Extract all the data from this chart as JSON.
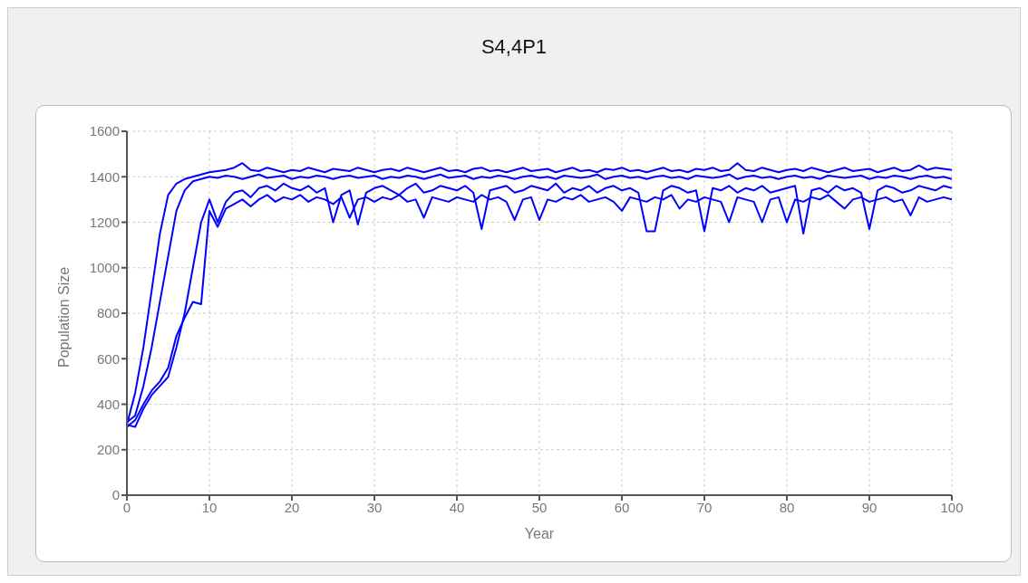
{
  "chart_data": {
    "type": "line",
    "title": "S4,4P1",
    "xlabel": "Year",
    "ylabel": "Population Size",
    "x": [
      0,
      1,
      2,
      3,
      4,
      5,
      6,
      7,
      8,
      9,
      10,
      11,
      12,
      13,
      14,
      15,
      16,
      17,
      18,
      19,
      20,
      21,
      22,
      23,
      24,
      25,
      26,
      27,
      28,
      29,
      30,
      31,
      32,
      33,
      34,
      35,
      36,
      37,
      38,
      39,
      40,
      41,
      42,
      43,
      44,
      45,
      46,
      47,
      48,
      49,
      50,
      51,
      52,
      53,
      54,
      55,
      56,
      57,
      58,
      59,
      60,
      61,
      62,
      63,
      64,
      65,
      66,
      67,
      68,
      69,
      70,
      71,
      72,
      73,
      74,
      75,
      76,
      77,
      78,
      79,
      80,
      81,
      82,
      83,
      84,
      85,
      86,
      87,
      88,
      89,
      90,
      91,
      92,
      93,
      94,
      95,
      96,
      97,
      98,
      99,
      100
    ],
    "series": [
      {
        "color": "#0000ff",
        "values": [
          310,
          450,
          650,
          900,
          1150,
          1320,
          1370,
          1390,
          1400,
          1410,
          1420,
          1425,
          1430,
          1440,
          1460,
          1430,
          1425,
          1440,
          1430,
          1420,
          1430,
          1425,
          1440,
          1430,
          1420,
          1435,
          1430,
          1425,
          1440,
          1430,
          1420,
          1430,
          1435,
          1425,
          1440,
          1430,
          1420,
          1430,
          1440,
          1425,
          1430,
          1420,
          1435,
          1440,
          1425,
          1430,
          1420,
          1430,
          1440,
          1425,
          1430,
          1435,
          1420,
          1430,
          1440,
          1425,
          1430,
          1420,
          1435,
          1430,
          1440,
          1425,
          1430,
          1420,
          1430,
          1440,
          1425,
          1430,
          1420,
          1435,
          1430,
          1440,
          1425,
          1430,
          1460,
          1430,
          1425,
          1440,
          1430,
          1420,
          1430,
          1435,
          1425,
          1440,
          1430,
          1420,
          1430,
          1440,
          1425,
          1430,
          1435,
          1420,
          1430,
          1440,
          1425,
          1430,
          1450,
          1430,
          1440,
          1435,
          1430
        ]
      },
      {
        "color": "#0000ff",
        "values": [
          320,
          350,
          480,
          650,
          850,
          1050,
          1250,
          1340,
          1380,
          1390,
          1400,
          1395,
          1405,
          1400,
          1390,
          1400,
          1410,
          1395,
          1400,
          1405,
          1390,
          1400,
          1395,
          1405,
          1400,
          1390,
          1400,
          1405,
          1395,
          1400,
          1405,
          1390,
          1400,
          1395,
          1405,
          1400,
          1390,
          1400,
          1410,
          1395,
          1400,
          1405,
          1390,
          1400,
          1395,
          1405,
          1400,
          1390,
          1400,
          1405,
          1395,
          1400,
          1390,
          1405,
          1400,
          1395,
          1400,
          1410,
          1390,
          1400,
          1405,
          1395,
          1400,
          1390,
          1400,
          1405,
          1395,
          1400,
          1390,
          1405,
          1400,
          1395,
          1400,
          1410,
          1390,
          1400,
          1405,
          1395,
          1400,
          1390,
          1400,
          1405,
          1395,
          1400,
          1390,
          1405,
          1400,
          1395,
          1400,
          1405,
          1390,
          1400,
          1395,
          1405,
          1400,
          1390,
          1400,
          1405,
          1395,
          1400,
          1390
        ]
      },
      {
        "color": "#0000ff",
        "values": [
          310,
          300,
          380,
          440,
          480,
          520,
          650,
          800,
          1000,
          1200,
          1300,
          1200,
          1290,
          1330,
          1340,
          1310,
          1350,
          1360,
          1340,
          1370,
          1350,
          1340,
          1360,
          1330,
          1350,
          1200,
          1320,
          1340,
          1190,
          1330,
          1350,
          1360,
          1340,
          1320,
          1350,
          1370,
          1330,
          1340,
          1360,
          1350,
          1340,
          1360,
          1330,
          1170,
          1340,
          1350,
          1360,
          1330,
          1340,
          1360,
          1350,
          1340,
          1370,
          1330,
          1350,
          1340,
          1360,
          1330,
          1350,
          1360,
          1340,
          1350,
          1330,
          1160,
          1160,
          1340,
          1360,
          1350,
          1330,
          1340,
          1160,
          1350,
          1340,
          1360,
          1330,
          1350,
          1340,
          1360,
          1330,
          1340,
          1350,
          1360,
          1150,
          1340,
          1350,
          1330,
          1360,
          1340,
          1350,
          1330,
          1170,
          1340,
          1360,
          1350,
          1330,
          1340,
          1360,
          1350,
          1340,
          1360,
          1350
        ]
      },
      {
        "color": "#0000ff",
        "values": [
          300,
          330,
          400,
          460,
          500,
          560,
          700,
          780,
          850,
          840,
          1250,
          1180,
          1260,
          1280,
          1300,
          1270,
          1300,
          1320,
          1290,
          1310,
          1300,
          1320,
          1290,
          1310,
          1300,
          1280,
          1310,
          1220,
          1300,
          1310,
          1290,
          1310,
          1300,
          1320,
          1290,
          1300,
          1220,
          1310,
          1300,
          1290,
          1310,
          1300,
          1290,
          1320,
          1300,
          1310,
          1290,
          1210,
          1300,
          1310,
          1210,
          1300,
          1290,
          1310,
          1300,
          1320,
          1290,
          1300,
          1310,
          1290,
          1250,
          1310,
          1300,
          1290,
          1310,
          1300,
          1320,
          1260,
          1300,
          1290,
          1310,
          1300,
          1290,
          1200,
          1310,
          1300,
          1290,
          1200,
          1300,
          1310,
          1200,
          1300,
          1290,
          1310,
          1300,
          1320,
          1290,
          1260,
          1300,
          1310,
          1290,
          1300,
          1310,
          1290,
          1300,
          1230,
          1310,
          1290,
          1300,
          1310,
          1300
        ]
      }
    ],
    "xlim": [
      0,
      100
    ],
    "xticks": [
      0,
      10,
      20,
      30,
      40,
      50,
      60,
      70,
      80,
      90,
      100
    ],
    "ylim": [
      0,
      1600
    ],
    "yticks": [
      0,
      200,
      400,
      600,
      800,
      1000,
      1200,
      1400,
      1600
    ],
    "grid": true
  }
}
